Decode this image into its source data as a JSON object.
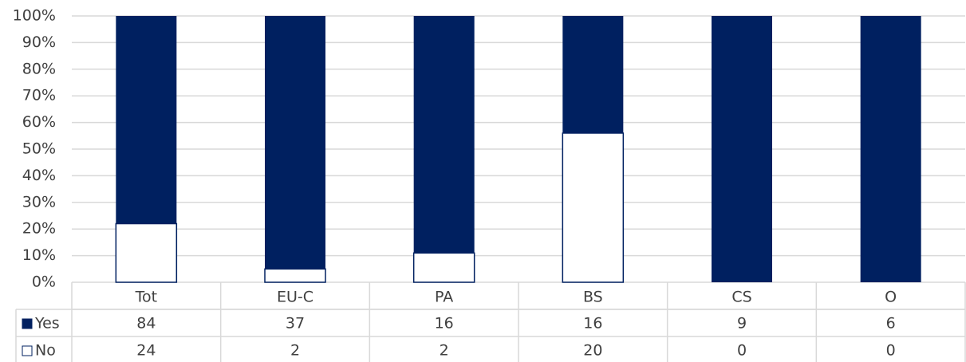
{
  "chart_data": {
    "type": "stacked_percent_bar",
    "categories": [
      "Tot",
      "EU-C",
      "PA",
      "BS",
      "CS",
      "O"
    ],
    "series": [
      {
        "name": "No",
        "color": "#ffffff",
        "values": [
          22,
          5,
          11,
          56,
          0,
          0
        ],
        "table_values": [
          24,
          2,
          2,
          20,
          0,
          0
        ]
      },
      {
        "name": "Yes",
        "color": "#002060",
        "values": [
          78,
          95,
          89,
          44,
          100,
          100
        ],
        "table_values": [
          84,
          37,
          16,
          16,
          9,
          6
        ]
      }
    ],
    "ylim": [
      0,
      100
    ],
    "yticks": [
      {
        "value": 0,
        "label": "0%"
      },
      {
        "value": 10,
        "label": "10%"
      },
      {
        "value": 20,
        "label": "20%"
      },
      {
        "value": 30,
        "label": "30%"
      },
      {
        "value": 40,
        "label": "40%"
      },
      {
        "value": 50,
        "label": "50%"
      },
      {
        "value": 60,
        "label": "60%"
      },
      {
        "value": 70,
        "label": "70%"
      },
      {
        "value": 80,
        "label": "80%"
      },
      {
        "value": 90,
        "label": "90%"
      },
      {
        "value": 100,
        "label": "100%"
      }
    ],
    "grid": true
  }
}
